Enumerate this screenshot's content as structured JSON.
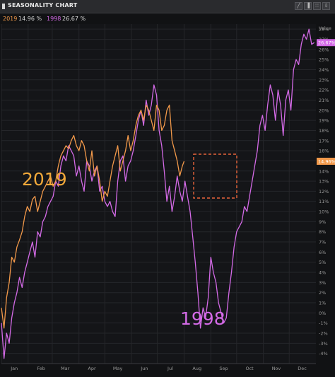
{
  "window": {
    "title": "SEASONALITY CHART",
    "toolbar": [
      {
        "name": "line-chart-icon",
        "glyph": "╱"
      },
      {
        "name": "bar-chart-icon",
        "glyph": "▐"
      },
      {
        "name": "scatter-icon",
        "glyph": "∷"
      },
      {
        "name": "export-icon",
        "glyph": "⇩"
      }
    ]
  },
  "legend": {
    "items": [
      {
        "year": "2019",
        "value": "14.96 %",
        "color": "#f2994a"
      },
      {
        "year": "1998",
        "value": "26.67 %",
        "color": "#d36ae6"
      }
    ]
  },
  "annotations": {
    "label_2019": "2019",
    "label_1998": "1998",
    "box_color": "#e8643a"
  },
  "chart_data": {
    "type": "line",
    "ylabel": "Value",
    "y_unit": "%",
    "ylim": [
      -5,
      28.5
    ],
    "y_ticks": [
      -4,
      -3,
      -2,
      -1,
      0,
      1,
      2,
      3,
      4,
      5,
      6,
      7,
      8,
      9,
      10,
      11,
      12,
      13,
      14,
      15,
      16,
      17,
      18,
      19,
      20,
      21,
      22,
      23,
      24,
      25,
      26,
      27,
      28
    ],
    "months": [
      "Jan",
      "Feb",
      "Mar",
      "Apr",
      "May",
      "Jun",
      "Jul",
      "Aug",
      "Sep",
      "Oct",
      "Nov",
      "Dec"
    ],
    "grid": true,
    "last_value_labels": [
      {
        "series": "2019",
        "value": 14.96,
        "text": "14.96%"
      },
      {
        "series": "1998",
        "value": 26.67,
        "text": "26.67%"
      }
    ],
    "series": [
      {
        "name": "2019",
        "color": "#f2994a",
        "x_day": [
          0,
          3,
          6,
          9,
          12,
          15,
          18,
          21,
          24,
          27,
          30,
          33,
          36,
          39,
          42,
          45,
          48,
          51,
          54,
          57,
          60,
          63,
          66,
          69,
          72,
          75,
          78,
          81,
          84,
          87,
          90,
          93,
          96,
          99,
          102,
          105,
          108,
          111,
          114,
          117,
          120,
          123,
          126,
          129,
          132,
          135,
          138,
          141,
          144,
          147,
          150,
          153,
          156,
          159,
          162,
          165,
          168,
          171,
          174,
          177,
          180,
          183,
          186,
          189,
          192,
          195,
          198,
          201,
          204,
          207,
          210,
          212
        ],
        "y": [
          0.5,
          -1.5,
          1.5,
          3.0,
          5.5,
          5.0,
          6.5,
          7.2,
          8.0,
          9.5,
          10.5,
          10.0,
          11.2,
          11.5,
          10.0,
          11.0,
          12.0,
          12.5,
          13.0,
          13.5,
          12.5,
          13.0,
          14.5,
          15.5,
          16.0,
          16.5,
          16.2,
          17.0,
          17.5,
          16.5,
          16.0,
          17.0,
          16.5,
          15.0,
          14.0,
          16.0,
          13.5,
          14.5,
          13.0,
          11.0,
          12.0,
          11.5,
          13.0,
          14.5,
          15.5,
          16.5,
          14.0,
          15.0,
          16.0,
          17.5,
          16.0,
          17.0,
          18.5,
          19.5,
          20.0,
          19.0,
          20.5,
          20.0,
          19.0,
          18.0,
          20.5,
          20.0,
          18.0,
          18.5,
          20.0,
          20.5,
          17.0,
          16.0,
          15.0,
          13.5,
          14.5,
          14.96
        ]
      },
      {
        "name": "1998",
        "color": "#d36ae6",
        "x_day": [
          0,
          3,
          6,
          9,
          12,
          15,
          18,
          21,
          24,
          27,
          30,
          33,
          36,
          39,
          42,
          45,
          48,
          51,
          54,
          57,
          60,
          63,
          66,
          69,
          72,
          75,
          78,
          81,
          84,
          87,
          90,
          93,
          96,
          99,
          102,
          105,
          108,
          111,
          114,
          117,
          120,
          123,
          126,
          129,
          132,
          135,
          138,
          141,
          144,
          147,
          150,
          153,
          156,
          159,
          162,
          165,
          168,
          171,
          174,
          177,
          180,
          183,
          186,
          189,
          192,
          195,
          198,
          201,
          204,
          207,
          210,
          213,
          216,
          219,
          222,
          225,
          228,
          231,
          234,
          237,
          240,
          243,
          246,
          249,
          252,
          255,
          258,
          261,
          264,
          267,
          270,
          273,
          276,
          279,
          282,
          285,
          288,
          291,
          294,
          297,
          300,
          303,
          306,
          309,
          312,
          315,
          318,
          321,
          324,
          327,
          330,
          333,
          336,
          339,
          342,
          345,
          348,
          351,
          354,
          357,
          360,
          363
        ],
        "y": [
          -1.0,
          -4.5,
          -2.0,
          -3.0,
          -0.5,
          1.0,
          2.0,
          3.5,
          2.5,
          4.0,
          5.0,
          6.0,
          7.0,
          5.5,
          8.0,
          7.5,
          9.0,
          9.5,
          10.5,
          11.0,
          11.5,
          13.0,
          12.5,
          14.5,
          15.5,
          15.0,
          16.5,
          16.0,
          15.5,
          13.5,
          14.5,
          13.0,
          12.0,
          15.0,
          14.5,
          13.0,
          14.0,
          14.5,
          12.0,
          12.5,
          11.0,
          10.5,
          11.0,
          10.0,
          9.5,
          13.0,
          15.0,
          15.5,
          13.0,
          14.5,
          15.0,
          16.0,
          17.5,
          19.0,
          20.0,
          18.5,
          21.0,
          19.5,
          20.5,
          22.5,
          21.5,
          18.0,
          16.5,
          14.0,
          11.0,
          12.5,
          10.0,
          11.5,
          13.5,
          12.0,
          11.0,
          13.0,
          11.5,
          10.0,
          7.5,
          5.0,
          2.0,
          -1.5,
          0.5,
          -0.5,
          1.5,
          5.5,
          4.0,
          3.0,
          1.0,
          0.0,
          -1.0,
          -0.5,
          2.0,
          4.0,
          6.5,
          8.0,
          8.5,
          9.0,
          10.5,
          10.0,
          11.5,
          13.0,
          14.5,
          16.0,
          18.5,
          19.5,
          18.0,
          20.5,
          22.5,
          21.5,
          19.0,
          22.0,
          20.5,
          17.5,
          21.0,
          22.0,
          20.0,
          24.0,
          25.0,
          24.5,
          26.5,
          27.5,
          27.0,
          28.0,
          26.5,
          26.67
        ]
      }
    ]
  }
}
